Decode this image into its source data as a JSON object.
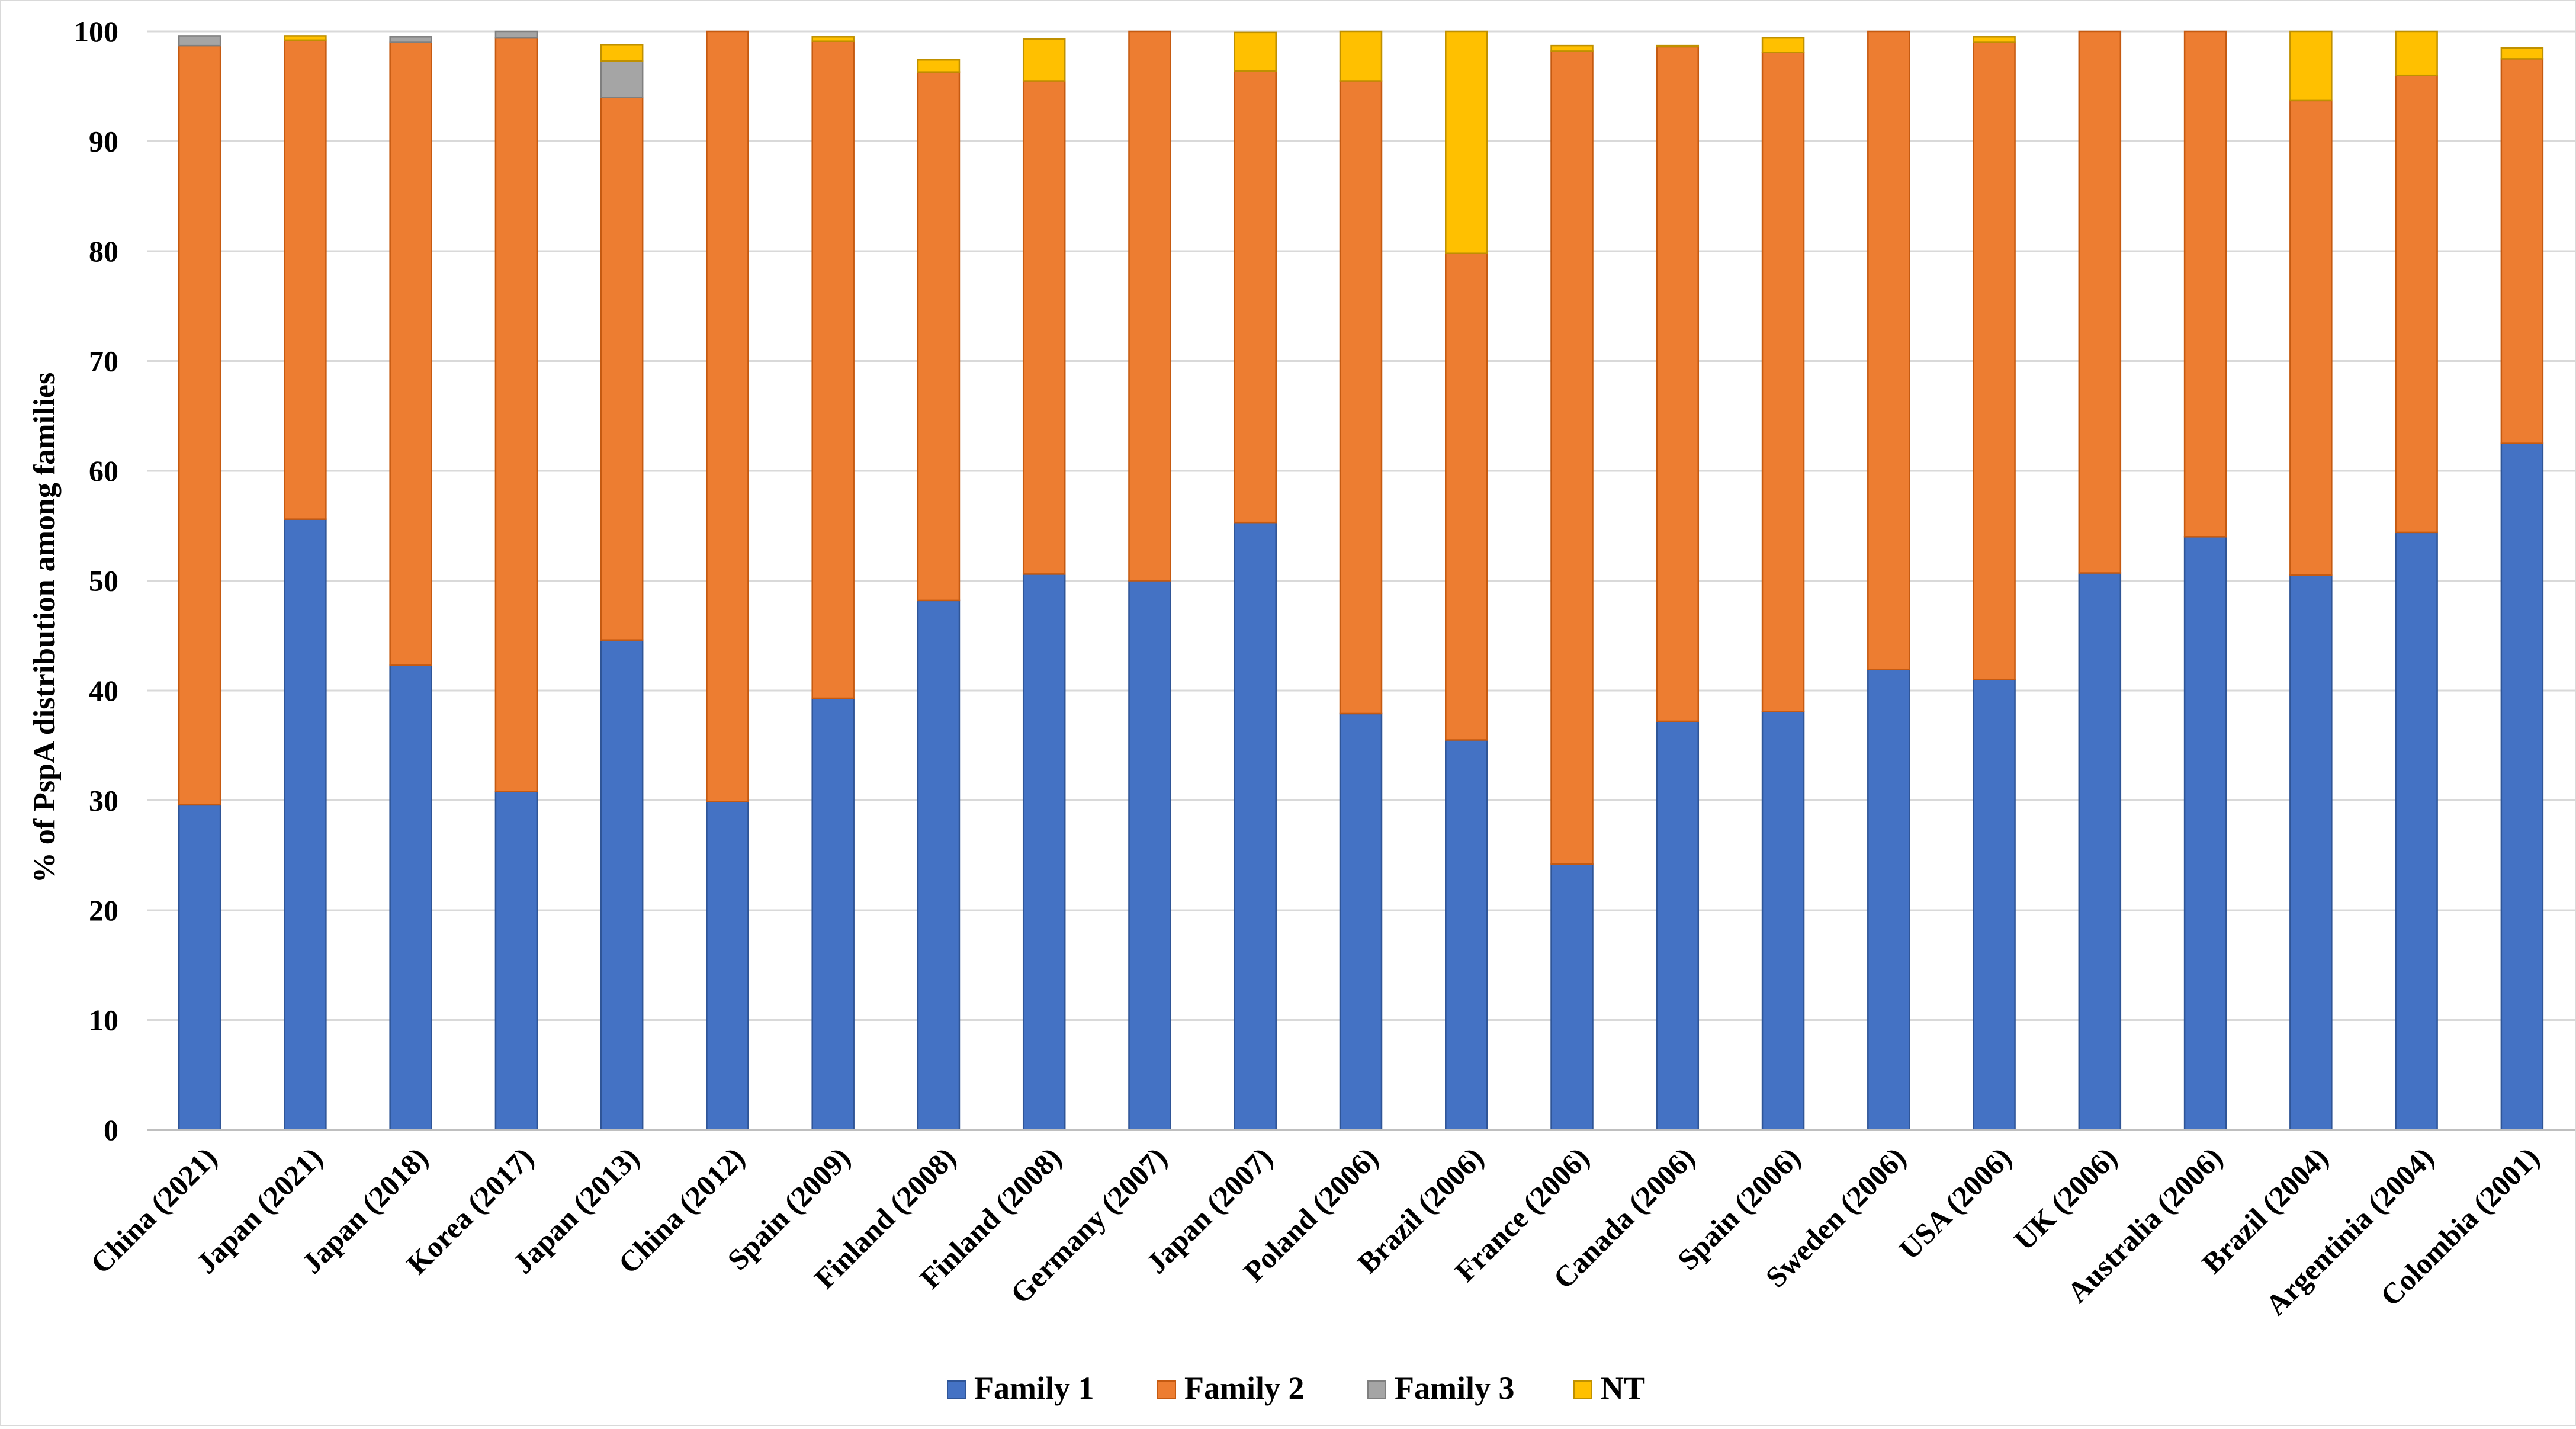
{
  "chart_data": {
    "type": "bar",
    "stacked": true,
    "title": "",
    "xlabel": "",
    "ylabel": "% of PspA distribution among families",
    "ylim": [
      0,
      100
    ],
    "yticks": [
      0,
      10,
      20,
      30,
      40,
      50,
      60,
      70,
      80,
      90,
      100
    ],
    "grid": true,
    "legend_position": "bottom-center",
    "categories": [
      "China (2021)",
      "Japan (2021)",
      "Japan (2018)",
      "Korea (2017)",
      "Japan (2013)",
      "China (2012)",
      "Spain (2009)",
      "Finland (2008)",
      "Finland (2008)",
      "Germany (2007)",
      "Japan (2007)",
      "Poland (2006)",
      "Brazil (2006)",
      "France (2006)",
      "Canada (2006)",
      "Spain (2006)",
      "Sweden (2006)",
      "USA (2006)",
      "UK (2006)",
      "Australia (2006)",
      "Brazil (2004)",
      "Argentinia (2004)",
      "Colombia (2001)"
    ],
    "series": [
      {
        "name": "Family 1",
        "color": "#4472c4",
        "border": "#2f5597",
        "values": [
          29.6,
          55.6,
          42.3,
          30.8,
          44.6,
          29.9,
          39.3,
          48.2,
          50.6,
          50.0,
          55.3,
          37.9,
          35.5,
          24.2,
          37.2,
          38.1,
          41.9,
          41.0,
          50.7,
          54.0,
          50.5,
          54.4,
          62.5
        ]
      },
      {
        "name": "Family 2",
        "color": "#ed7d31",
        "border": "#c55a11",
        "values": [
          69.1,
          43.6,
          56.7,
          68.6,
          49.4,
          70.1,
          59.8,
          48.1,
          44.9,
          50.0,
          41.1,
          57.6,
          44.3,
          74.0,
          61.4,
          60.0,
          58.1,
          58.0,
          49.3,
          46.0,
          43.2,
          41.6,
          35.0
        ]
      },
      {
        "name": "Family 3",
        "color": "#a5a5a5",
        "border": "#7f7f7f",
        "values": [
          0.9,
          0,
          0.5,
          0.6,
          3.3,
          0,
          0,
          0,
          0,
          0,
          0,
          0,
          0,
          0,
          0,
          0,
          0,
          0,
          0,
          0,
          0,
          0,
          0
        ]
      },
      {
        "name": "NT",
        "color": "#ffc000",
        "border": "#bf9000",
        "values": [
          0,
          0.4,
          0,
          0,
          1.5,
          0,
          0.4,
          1.1,
          3.8,
          0,
          3.5,
          4.5,
          20.2,
          0.5,
          0.1,
          1.3,
          0,
          0.5,
          0,
          0,
          6.3,
          4.0,
          1.0
        ]
      }
    ]
  }
}
